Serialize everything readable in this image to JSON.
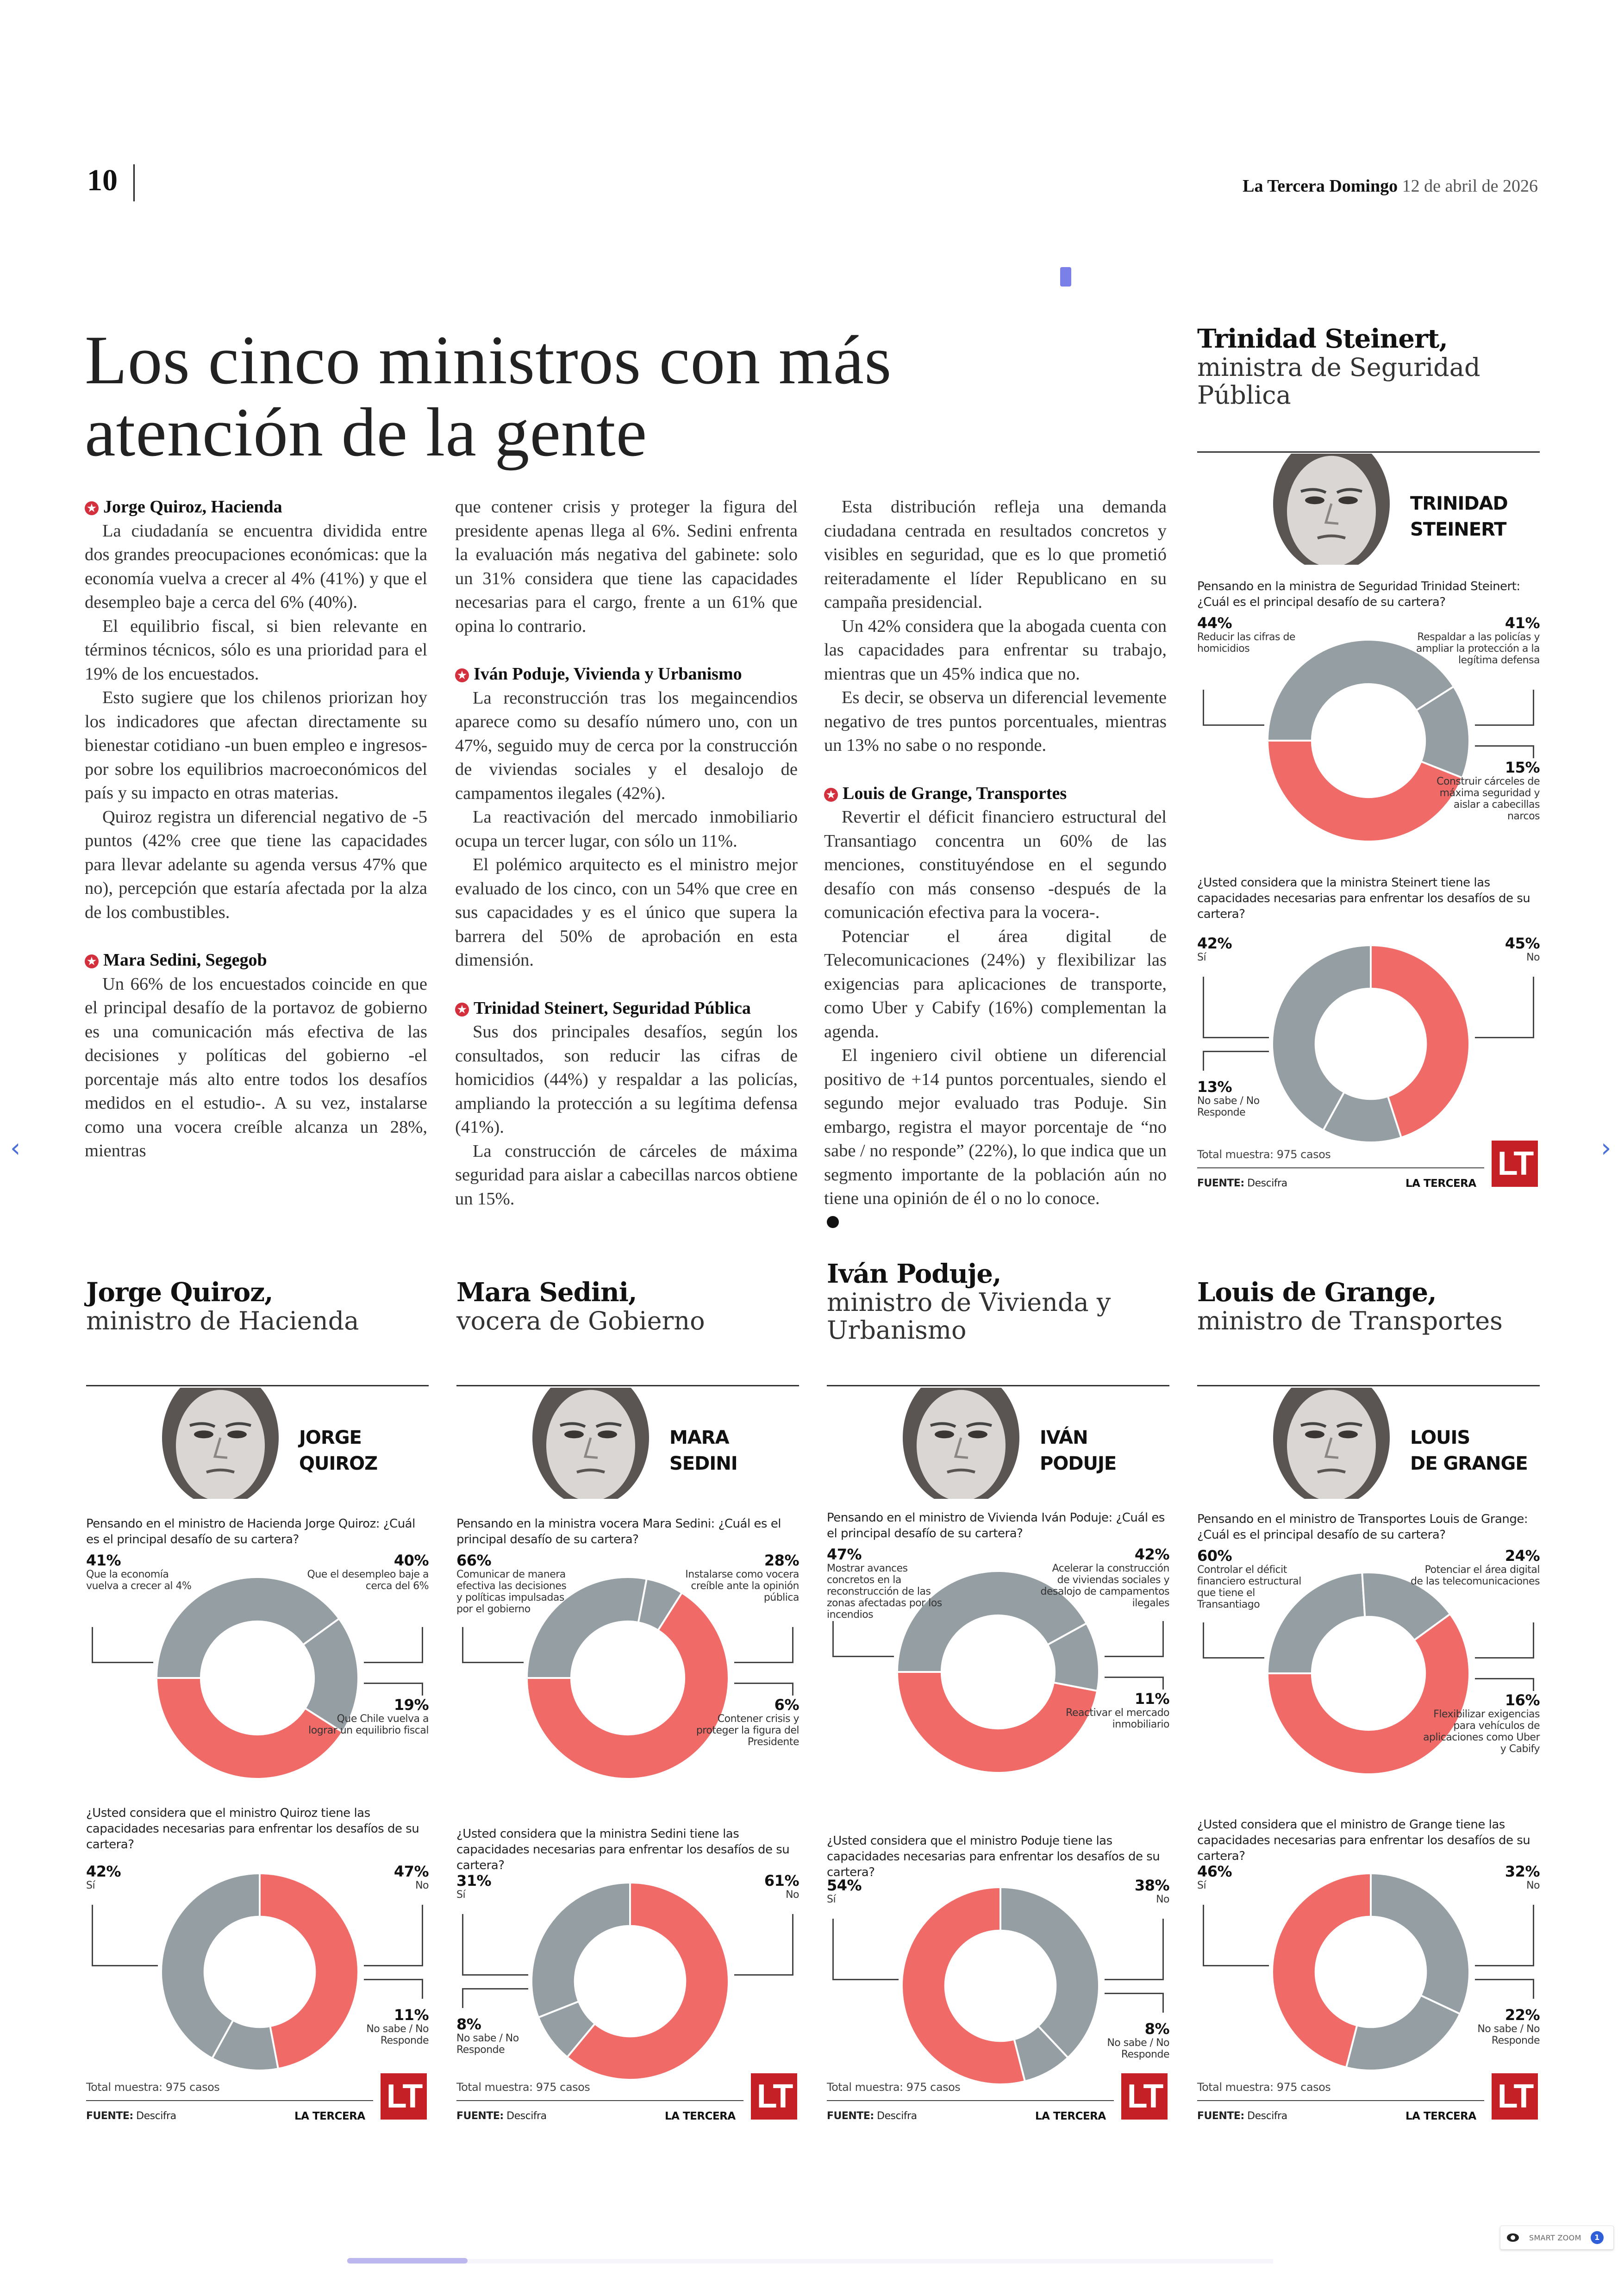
{
  "header": {
    "page_number": "10",
    "publication": "La Tercera Domingo",
    "date": "12 de abril de 2026"
  },
  "headline": "Los cinco ministros con más atención de la gente",
  "article": {
    "sections": [
      {
        "heading": "Jorge Quiroz, Hacienda",
        "paragraphs": [
          "La ciudadanía se encuentra dividida entre dos grandes preocupaciones económicas: que la economía vuelva a crecer al 4% (41%) y que el desempleo baje a cerca del 6% (40%).",
          "El equilibrio fiscal, si bien relevante en términos técnicos, sólo es una prioridad para el 19% de los encuestados.",
          "Esto sugiere que los chilenos priorizan hoy los indicadores que afectan directamente su bienestar cotidiano -un buen empleo e ingresos- por sobre los equilibrios macroeconómicos del país y su impacto en otras materias.",
          "Quiroz registra un diferencial negativo de -5 puntos (42% cree que tiene las capacidades para llevar adelante su agenda versus 47% que no), percepción que estaría afectada por la alza de los combustibles."
        ]
      },
      {
        "heading": "Mara Sedini, Segegob",
        "paragraphs": [
          "Un 66% de los encuestados coincide en que el principal desafío de la portavoz de gobierno es una comunicación más efectiva de las decisiones y políticas del gobierno -el porcentaje más alto entre todos los desafíos medidos en el estudio-. A su vez, instalarse como una vocera creíble alcanza un 28%, mientras",
          "que contener crisis y proteger la figura del presidente apenas llega al 6%. Sedini enfrenta la evaluación más negativa del gabinete: solo un 31% considera que tiene las capacidades necesarias para el cargo, frente a un 61% que opina lo contrario."
        ]
      },
      {
        "heading": "Iván Poduje, Vivienda y Urbanismo",
        "paragraphs": [
          "La reconstrucción tras los megaincendios aparece como su desafío número uno, con un 47%, seguido muy de cerca por la construcción de viviendas sociales y el desalojo de campamentos ilegales (42%).",
          "La reactivación del mercado inmobiliario ocupa un tercer lugar, con sólo un 11%.",
          "El polémico arquitecto es el ministro mejor evaluado de los cinco, con un 54% que cree en sus capacidades y es el único que supera la barrera del 50% de aprobación en esta dimensión."
        ]
      },
      {
        "heading": "Trinidad Steinert, Seguridad Pública",
        "paragraphs": [
          "Sus dos principales desafíos, según los consultados, son reducir las cifras de homicidios (44%) y respaldar a las policías, ampliando la protección a su legítima defensa (41%).",
          "La construcción de cárceles de máxima seguridad para aislar a cabecillas narcos obtiene un 15%.",
          "Esta distribución refleja una demanda ciudadana centrada en resultados concretos y visibles en seguridad, que es lo que prometió reiteradamente el líder Republicano en su campaña presidencial.",
          "Un 42% considera que la abogada cuenta con las capacidades para enfrentar su trabajo, mientras que un 45% indica que no.",
          "Es decir, se observa un diferencial levemente negativo de tres puntos porcentuales, mientras un 13% no sabe o no responde."
        ]
      },
      {
        "heading": "Louis de Grange, Transportes",
        "paragraphs": [
          "Revertir el déficit financiero estructural del Transantiago concentra un 60% de las menciones, constituyéndose en el segundo desafío con más consenso -después de la comunicación efectiva para la vocera-.",
          "Potenciar el área digital de Telecomunicaciones (24%) y flexibilizar las exigencias para aplicaciones de transporte, como Uber y Cabify (16%) complementan la agenda.",
          "El ingeniero civil obtiene un diferencial positivo de +14 puntos porcentuales, siendo el segundo mejor evaluado tras Poduje. Sin embargo, registra el mayor porcentaje de “no sabe / no responde” (22%), lo que indica que un segmento importante de la población aún no tiene una opinión de él o no lo conoce."
        ]
      }
    ]
  },
  "colors": {
    "accent_red": "#f06b68",
    "slice_gray": "#949ea3",
    "brand_red": "#c62027",
    "star_red": "#d32f3c"
  },
  "chart_data": [
    {
      "id": "steinert",
      "name": "Trinidad Steinert,",
      "role": "ministra de Seguridad Pública",
      "photo_caption": [
        "TRINIDAD",
        "STEINERT"
      ],
      "challenge": {
        "type": "pie",
        "title": "Pensando en la ministra de Seguridad Trinidad Steinert: ¿Cuál es el principal desafío de su cartera?",
        "slices": [
          {
            "value": 44,
            "pct": "44%",
            "label": "Reducir las cifras de homicidios",
            "color": "red"
          },
          {
            "value": 41,
            "pct": "41%",
            "label": "Respaldar a las policías y ampliar la protección a la legítima defensa",
            "color": "gray"
          },
          {
            "value": 15,
            "pct": "15%",
            "label": "Construir cárceles de máxima seguridad y aislar a cabecillas narcos",
            "color": "gray"
          }
        ]
      },
      "capacity": {
        "type": "pie",
        "title": "¿Usted considera que la ministra Steinert tiene las capacidades necesarias para enfrentar los desafíos de su cartera?",
        "slices": [
          {
            "value": 42,
            "pct": "42%",
            "label": "Sí",
            "color": "gray"
          },
          {
            "value": 45,
            "pct": "45%",
            "label": "No",
            "color": "red"
          },
          {
            "value": 13,
            "pct": "13%",
            "label": "No sabe / No Responde",
            "color": "gray"
          }
        ]
      }
    },
    {
      "id": "quiroz",
      "name": "Jorge Quiroz,",
      "role": "ministro de Hacienda",
      "photo_caption": [
        "JORGE",
        "QUIROZ"
      ],
      "challenge": {
        "type": "pie",
        "title": "Pensando en el ministro de Hacienda Jorge Quiroz: ¿Cuál es el principal desafío de su cartera?",
        "slices": [
          {
            "value": 41,
            "pct": "41%",
            "label": "Que la economía vuelva a crecer al 4%",
            "color": "red"
          },
          {
            "value": 40,
            "pct": "40%",
            "label": "Que el desempleo baje a cerca del 6%",
            "color": "gray"
          },
          {
            "value": 19,
            "pct": "19%",
            "label": "Que Chile vuelva a lograr un equilibrio fiscal",
            "color": "gray"
          }
        ]
      },
      "capacity": {
        "type": "pie",
        "title": "¿Usted considera que el ministro Quiroz tiene las capacidades necesarias para enfrentar los desafíos de su cartera?",
        "slices": [
          {
            "value": 42,
            "pct": "42%",
            "label": "Sí",
            "color": "gray"
          },
          {
            "value": 47,
            "pct": "47%",
            "label": "No",
            "color": "red"
          },
          {
            "value": 11,
            "pct": "11%",
            "label": "No sabe / No Responde",
            "color": "gray"
          }
        ]
      }
    },
    {
      "id": "sedini",
      "name": "Mara Sedini,",
      "role": "vocera de Gobierno",
      "photo_caption": [
        "MARA",
        "SEDINI"
      ],
      "challenge": {
        "type": "pie",
        "title": "Pensando en la ministra vocera Mara Sedini: ¿Cuál es el principal desafío de su cartera?",
        "slices": [
          {
            "value": 66,
            "pct": "66%",
            "label": "Comunicar de manera efectiva las decisiones y políticas impulsadas por el gobierno",
            "color": "red"
          },
          {
            "value": 28,
            "pct": "28%",
            "label": "Instalarse como vocera creíble ante la opinión pública",
            "color": "gray"
          },
          {
            "value": 6,
            "pct": "6%",
            "label": "Contener crisis y proteger la figura del Presidente",
            "color": "gray"
          }
        ]
      },
      "capacity": {
        "type": "pie",
        "title": "¿Usted considera que la ministra Sedini tiene las capacidades necesarias para enfrentar los desafíos de su cartera?",
        "slices": [
          {
            "value": 31,
            "pct": "31%",
            "label": "Sí",
            "color": "gray"
          },
          {
            "value": 61,
            "pct": "61%",
            "label": "No",
            "color": "red"
          },
          {
            "value": 8,
            "pct": "8%",
            "label": "No sabe / No Responde",
            "color": "gray"
          }
        ]
      }
    },
    {
      "id": "poduje",
      "name": "Iván Poduje,",
      "role": "ministro de Vivienda y Urbanismo",
      "photo_caption": [
        "IVÁN",
        "PODUJE"
      ],
      "challenge": {
        "type": "pie",
        "title": "Pensando en el ministro de Vivienda Iván Poduje: ¿Cuál es el principal desafío de su cartera?",
        "slices": [
          {
            "value": 47,
            "pct": "47%",
            "label": "Mostrar avances concretos en la reconstrucción de las zonas afectadas por los incendios",
            "color": "red"
          },
          {
            "value": 42,
            "pct": "42%",
            "label": "Acelerar la construcción de viviendas sociales y desalojo de campamentos ilegales",
            "color": "gray"
          },
          {
            "value": 11,
            "pct": "11%",
            "label": "Reactivar el mercado inmobiliario",
            "color": "gray"
          }
        ]
      },
      "capacity": {
        "type": "pie",
        "title": "¿Usted considera que el ministro Poduje tiene las capacidades necesarias para enfrentar los desafíos de su cartera?",
        "slices": [
          {
            "value": 54,
            "pct": "54%",
            "label": "Sí",
            "color": "red"
          },
          {
            "value": 38,
            "pct": "38%",
            "label": "No",
            "color": "gray"
          },
          {
            "value": 8,
            "pct": "8%",
            "label": "No sabe / No Responde",
            "color": "gray"
          }
        ]
      }
    },
    {
      "id": "degrange",
      "name": "Louis de Grange,",
      "role": "ministro de Transportes",
      "photo_caption": [
        "LOUIS",
        "DE GRANGE"
      ],
      "challenge": {
        "type": "pie",
        "title": "Pensando en el ministro de Transportes Louis de Grange: ¿Cuál es el principal desafío de su cartera?",
        "slices": [
          {
            "value": 60,
            "pct": "60%",
            "label": "Controlar el déficit financiero estructural que tiene el Transantiago",
            "color": "red"
          },
          {
            "value": 24,
            "pct": "24%",
            "label": "Potenciar el área digital de las telecomunicaciones",
            "color": "gray"
          },
          {
            "value": 16,
            "pct": "16%",
            "label": "Flexibilizar exigencias para vehículos de aplicaciones como Uber y Cabify",
            "color": "gray"
          }
        ]
      },
      "capacity": {
        "type": "pie",
        "title": "¿Usted considera que el ministro de Grange tiene las capacidades necesarias para enfrentar los desafíos de su cartera?",
        "slices": [
          {
            "value": 46,
            "pct": "46%",
            "label": "Sí",
            "color": "red"
          },
          {
            "value": 32,
            "pct": "32%",
            "label": "No",
            "color": "gray"
          },
          {
            "value": 22,
            "pct": "22%",
            "label": "No sabe / No Responde",
            "color": "gray"
          }
        ]
      }
    }
  ],
  "chart_footer": {
    "total": "Total muestra: 975 casos",
    "source_label": "FUENTE:",
    "source": "Descifra",
    "brand": "LA TERCERA",
    "logo": "LT"
  },
  "viewer": {
    "prev_icon": "chevron-left-icon",
    "next_icon": "chevron-right-icon",
    "prev_glyph": "‹",
    "next_glyph": "›",
    "smart_zoom_label": "SMART ZOOM",
    "smart_zoom_badge": "1"
  }
}
